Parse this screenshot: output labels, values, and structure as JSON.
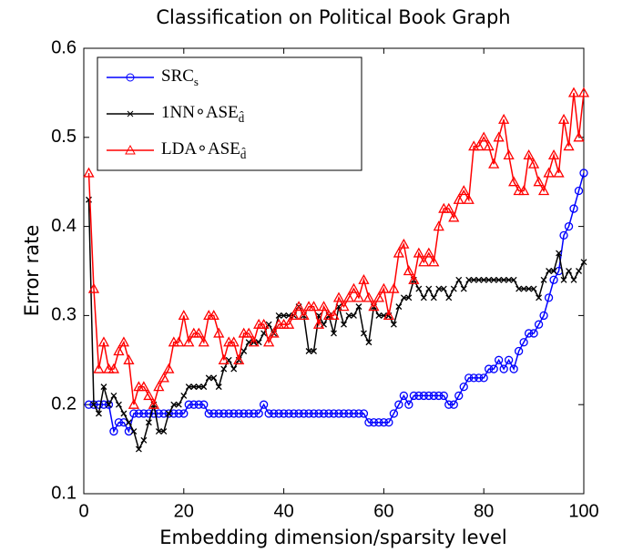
{
  "chart_data": {
    "type": "line",
    "title": "Classification on Political Book Graph",
    "x_label": "Embedding dimension/sparsity level",
    "y_label": "Error rate",
    "xlim": [
      0,
      100
    ],
    "ylim": [
      0.1,
      0.6
    ],
    "xticks": [
      0,
      20,
      40,
      60,
      80,
      100
    ],
    "yticks": [
      0.1,
      0.2,
      0.3,
      0.4,
      0.5,
      0.6
    ],
    "legend_position": "upper-left",
    "x": [
      1,
      2,
      3,
      4,
      5,
      6,
      7,
      8,
      9,
      10,
      11,
      12,
      13,
      14,
      15,
      16,
      17,
      18,
      19,
      20,
      21,
      22,
      23,
      24,
      25,
      26,
      27,
      28,
      29,
      30,
      31,
      32,
      33,
      34,
      35,
      36,
      37,
      38,
      39,
      40,
      41,
      42,
      43,
      44,
      45,
      46,
      47,
      48,
      49,
      50,
      51,
      52,
      53,
      54,
      55,
      56,
      57,
      58,
      59,
      60,
      61,
      62,
      63,
      64,
      65,
      66,
      67,
      68,
      69,
      70,
      71,
      72,
      73,
      74,
      75,
      76,
      77,
      78,
      79,
      80,
      81,
      82,
      83,
      84,
      85,
      86,
      87,
      88,
      89,
      90,
      91,
      92,
      93,
      94,
      95,
      96,
      97,
      98,
      99,
      100
    ],
    "series": [
      {
        "name": "SRC_s",
        "color": "#0000ff",
        "marker": "circle",
        "values": [
          0.2,
          0.2,
          0.2,
          0.2,
          0.2,
          0.17,
          0.18,
          0.18,
          0.17,
          0.19,
          0.19,
          0.19,
          0.19,
          0.19,
          0.19,
          0.19,
          0.19,
          0.19,
          0.19,
          0.19,
          0.2,
          0.2,
          0.2,
          0.2,
          0.19,
          0.19,
          0.19,
          0.19,
          0.19,
          0.19,
          0.19,
          0.19,
          0.19,
          0.19,
          0.19,
          0.2,
          0.19,
          0.19,
          0.19,
          0.19,
          0.19,
          0.19,
          0.19,
          0.19,
          0.19,
          0.19,
          0.19,
          0.19,
          0.19,
          0.19,
          0.19,
          0.19,
          0.19,
          0.19,
          0.19,
          0.19,
          0.18,
          0.18,
          0.18,
          0.18,
          0.18,
          0.19,
          0.2,
          0.21,
          0.2,
          0.21,
          0.21,
          0.21,
          0.21,
          0.21,
          0.21,
          0.21,
          0.2,
          0.2,
          0.21,
          0.22,
          0.23,
          0.23,
          0.23,
          0.23,
          0.24,
          0.24,
          0.25,
          0.24,
          0.25,
          0.24,
          0.26,
          0.27,
          0.28,
          0.28,
          0.29,
          0.3,
          0.32,
          0.34,
          0.35,
          0.39,
          0.4,
          0.42,
          0.44,
          0.46
        ]
      },
      {
        "name": "1NN∘ASE_d̂",
        "color": "#000000",
        "marker": "x",
        "values": [
          0.43,
          0.2,
          0.19,
          0.22,
          0.2,
          0.21,
          0.2,
          0.19,
          0.18,
          0.17,
          0.15,
          0.16,
          0.18,
          0.2,
          0.17,
          0.17,
          0.19,
          0.2,
          0.2,
          0.21,
          0.22,
          0.22,
          0.22,
          0.22,
          0.23,
          0.23,
          0.22,
          0.24,
          0.25,
          0.24,
          0.25,
          0.26,
          0.27,
          0.27,
          0.27,
          0.28,
          0.29,
          0.28,
          0.3,
          0.3,
          0.3,
          0.3,
          0.31,
          0.3,
          0.26,
          0.26,
          0.3,
          0.29,
          0.3,
          0.28,
          0.31,
          0.29,
          0.3,
          0.3,
          0.31,
          0.28,
          0.27,
          0.31,
          0.3,
          0.3,
          0.3,
          0.29,
          0.31,
          0.32,
          0.32,
          0.34,
          0.33,
          0.32,
          0.33,
          0.32,
          0.33,
          0.33,
          0.32,
          0.33,
          0.34,
          0.33,
          0.34,
          0.34,
          0.34,
          0.34,
          0.34,
          0.34,
          0.34,
          0.34,
          0.34,
          0.34,
          0.33,
          0.33,
          0.33,
          0.33,
          0.32,
          0.34,
          0.35,
          0.35,
          0.37,
          0.34,
          0.35,
          0.34,
          0.35,
          0.36
        ]
      },
      {
        "name": "LDA∘ASE_d̂",
        "color": "#ff0000",
        "marker": "triangle",
        "values": [
          0.46,
          0.33,
          0.24,
          0.27,
          0.24,
          0.24,
          0.26,
          0.27,
          0.25,
          0.2,
          0.22,
          0.22,
          0.21,
          0.2,
          0.22,
          0.23,
          0.24,
          0.27,
          0.27,
          0.3,
          0.27,
          0.28,
          0.28,
          0.27,
          0.3,
          0.3,
          0.28,
          0.25,
          0.27,
          0.27,
          0.25,
          0.28,
          0.28,
          0.27,
          0.29,
          0.29,
          0.27,
          0.28,
          0.29,
          0.29,
          0.29,
          0.3,
          0.31,
          0.3,
          0.31,
          0.31,
          0.29,
          0.31,
          0.3,
          0.3,
          0.32,
          0.31,
          0.32,
          0.33,
          0.32,
          0.34,
          0.32,
          0.31,
          0.32,
          0.33,
          0.3,
          0.33,
          0.37,
          0.38,
          0.35,
          0.34,
          0.37,
          0.36,
          0.37,
          0.36,
          0.4,
          0.42,
          0.42,
          0.41,
          0.43,
          0.44,
          0.43,
          0.49,
          0.49,
          0.5,
          0.49,
          0.47,
          0.5,
          0.52,
          0.48,
          0.45,
          0.44,
          0.44,
          0.48,
          0.47,
          0.45,
          0.44,
          0.46,
          0.48,
          0.46,
          0.52,
          0.49,
          0.55,
          0.5,
          0.55
        ]
      }
    ]
  }
}
